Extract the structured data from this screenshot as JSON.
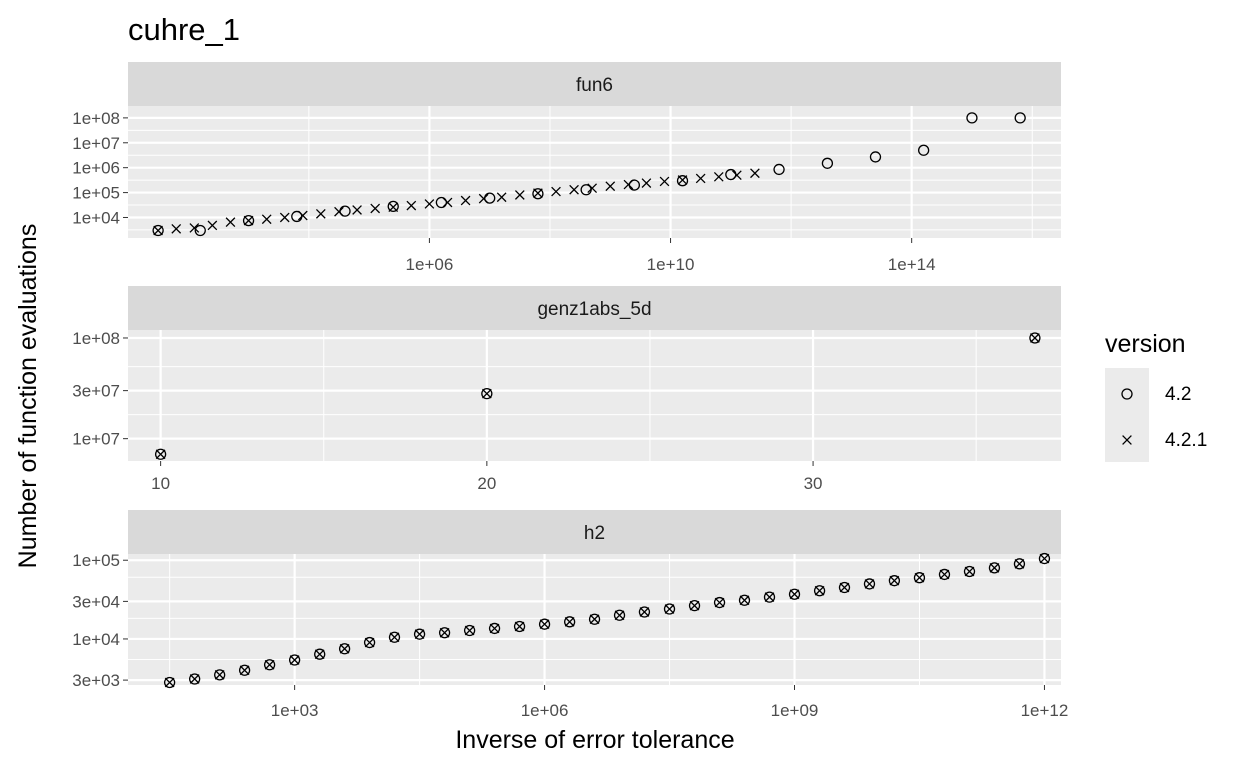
{
  "chart_data": {
    "type": "scatter",
    "title": "cuhre_1",
    "xlabel": "Inverse of error tolerance",
    "ylabel": "Number of function evaluations",
    "legend": {
      "title": "version",
      "position": "right",
      "entries": [
        {
          "name": "4.2",
          "shape": "open-circle"
        },
        {
          "name": "4.2.1",
          "shape": "cross"
        }
      ]
    },
    "grid": true,
    "panels": [
      {
        "name": "fun6",
        "x_scale": "log10",
        "y_scale": "log10",
        "xlim": [
          10,
          3e+16
        ],
        "ylim": [
          1500,
          300000000
        ],
        "x_ticks": [
          1000000.0,
          10000000000.0,
          100000000000000.0
        ],
        "x_tick_labels": [
          "1e+06",
          "1e+10",
          "1e+14"
        ],
        "y_ticks": [
          10000,
          100000,
          1000000,
          10000000,
          100000000
        ],
        "y_tick_labels": [
          "1e+04",
          "1e+05",
          "1e+06",
          "1e+07",
          "1e+08"
        ],
        "series": [
          {
            "name": "4.2",
            "x": [
              31.6,
              158,
              1000,
              6310,
              39800,
              251000,
              1580000,
              10000000,
              63100000,
              398000000,
              2510000000,
              15800000000,
              100000000000,
              631000000000,
              4000000000000,
              25100000000000,
              158000000000000,
              1000000000000000,
              6310000000000000
            ],
            "y": [
              3000,
              3000,
              7500,
              11000,
              18000,
              28000,
              40000,
              60000,
              90000,
              130000,
              200000,
              300000,
              530000,
              850000,
              1500000,
              2700000,
              5000000,
              100000000,
              100000000
            ]
          },
          {
            "name": "4.2.1",
            "x": [
              31.6,
              63.1,
              126,
              251,
              501,
              1000,
              2000,
              3980,
              7940,
              15800,
              31600,
              63100,
              126000,
              251000,
              501000,
              1000000,
              2000000,
              3980000,
              7940000,
              15800000,
              31600000,
              63100000,
              126000000,
              251000000,
              501000000,
              1000000000,
              2000000000,
              3980000000,
              7940000000,
              15800000000,
              31600000000,
              63100000000,
              126000000000,
              251000000000
            ],
            "y": [
              3000,
              3500,
              3800,
              4800,
              6500,
              7500,
              8500,
              10000,
              12000,
              14000,
              17000,
              20000,
              23000,
              26000,
              30000,
              35000,
              40000,
              48000,
              57000,
              65000,
              80000,
              95000,
              110000,
              130000,
              150000,
              180000,
              210000,
              240000,
              280000,
              320000,
              370000,
              430000,
              500000,
              600000
            ]
          }
        ]
      },
      {
        "name": "genz1abs_5d",
        "x_scale": "linear",
        "y_scale": "log10",
        "xlim": [
          9,
          37.6
        ],
        "ylim": [
          6000000,
          120000000
        ],
        "x_ticks": [
          10,
          20,
          30
        ],
        "x_tick_labels": [
          "10",
          "20",
          "30"
        ],
        "y_ticks": [
          10000000,
          30000000,
          100000000
        ],
        "y_tick_labels": [
          "1e+07",
          "3e+07",
          "1e+08"
        ],
        "series": [
          {
            "name": "4.2",
            "x": [
              10,
              20,
              36.8
            ],
            "y": [
              7000000,
              28000000,
              100000000
            ]
          },
          {
            "name": "4.2.1",
            "x": [
              10,
              20,
              36.8
            ],
            "y": [
              7000000,
              28000000,
              100000000
            ]
          }
        ]
      },
      {
        "name": "h2",
        "x_scale": "log10",
        "y_scale": "log10",
        "xlim": [
          10,
          1580000000000.0
        ],
        "ylim": [
          2600,
          120000
        ],
        "x_ticks": [
          1000,
          1000000,
          1000000000,
          1000000000000
        ],
        "x_tick_labels": [
          "1e+03",
          "1e+06",
          "1e+09",
          "1e+12"
        ],
        "y_ticks": [
          3000,
          10000,
          30000,
          100000
        ],
        "y_tick_labels": [
          "3e+03",
          "1e+04",
          "3e+04",
          "1e+05"
        ],
        "series": [
          {
            "name": "4.2",
            "x": [
              31.6,
              63.1,
              126,
              251,
              501,
              1000,
              2000,
              3980,
              7940,
              15800,
              31600,
              63100,
              126000,
              251000,
              501000,
              1000000,
              2000000,
              3980000,
              7940000,
              15800000,
              31600000,
              63100000,
              126000000,
              251000000,
              501000000,
              1000000000,
              2000000000,
              3980000000,
              7940000000,
              15800000000,
              31600000000,
              63100000000,
              126000000000,
              251000000000,
              501000000000,
              1000000000000
            ],
            "y": [
              2800,
              3100,
              3500,
              4000,
              4700,
              5400,
              6400,
              7500,
              9000,
              10500,
              11500,
              12000,
              12800,
              13600,
              14400,
              15400,
              16500,
              17800,
              20000,
              22000,
              24000,
              26500,
              29000,
              31000,
              34000,
              37000,
              41000,
              45000,
              50000,
              55000,
              60000,
              66000,
              72000,
              80000,
              90000,
              105000
            ]
          },
          {
            "name": "4.2.1",
            "x": [
              31.6,
              63.1,
              126,
              251,
              501,
              1000,
              2000,
              3980,
              7940,
              15800,
              31600,
              63100,
              126000,
              251000,
              501000,
              1000000,
              2000000,
              3980000,
              7940000,
              15800000,
              31600000,
              63100000,
              126000000,
              251000000,
              501000000,
              1000000000,
              2000000000,
              3980000000,
              7940000000,
              15800000000,
              31600000000,
              63100000000,
              126000000000,
              251000000000,
              501000000000,
              1000000000000
            ],
            "y": [
              2800,
              3100,
              3500,
              4000,
              4700,
              5400,
              6400,
              7500,
              9000,
              10500,
              11500,
              12000,
              12800,
              13600,
              14400,
              15400,
              16500,
              17800,
              20000,
              22000,
              24000,
              26500,
              29000,
              31000,
              34000,
              37000,
              41000,
              45000,
              50000,
              55000,
              60000,
              66000,
              72000,
              80000,
              90000,
              105000
            ]
          }
        ]
      }
    ]
  },
  "colors": {
    "panel_bg": "#ebebeb",
    "grid_major": "#ffffff",
    "strip_bg": "#d9d9d9",
    "tick_text": "#4d4d4d",
    "point": "#000000"
  }
}
